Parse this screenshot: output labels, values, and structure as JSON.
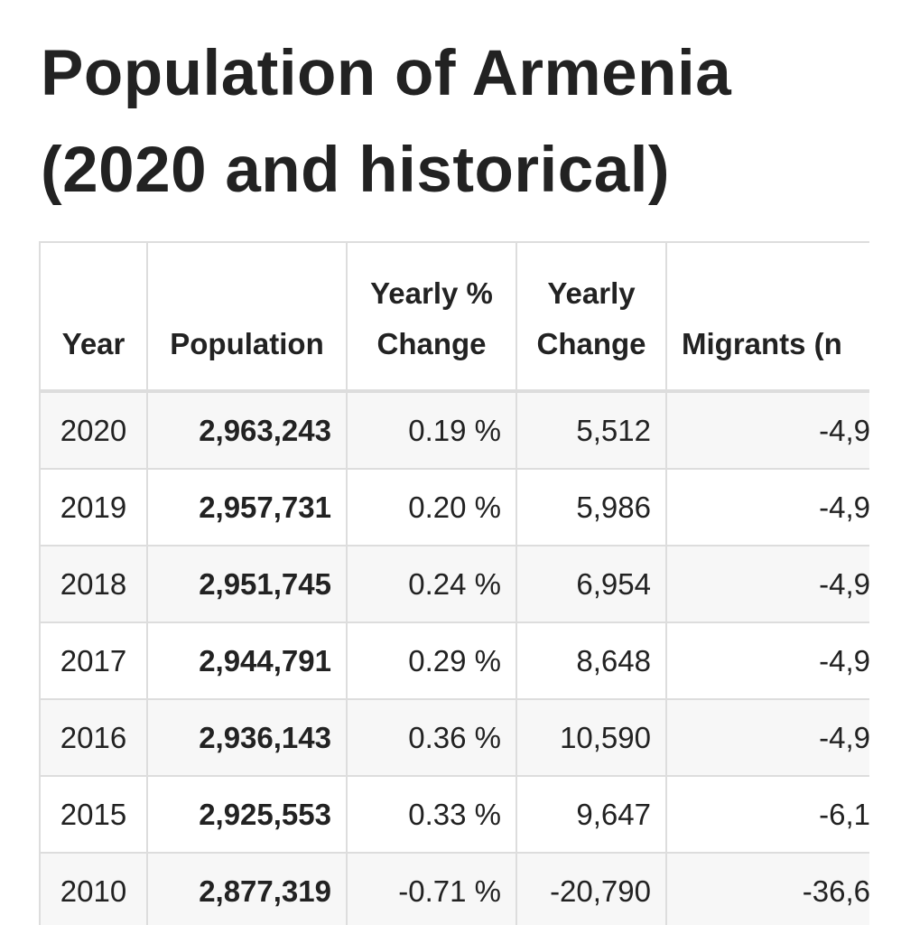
{
  "header": {
    "title": "Population of Armenia (2020 and historical)"
  },
  "table": {
    "columns": [
      "Year",
      "Population",
      "Yearly % Change",
      "Yearly Change",
      "Migrants (n"
    ],
    "rows": [
      [
        "2020",
        "2,963,243",
        "0.19 %",
        "5,512",
        "-4,9"
      ],
      [
        "2019",
        "2,957,731",
        "0.20 %",
        "5,986",
        "-4,9"
      ],
      [
        "2018",
        "2,951,745",
        "0.24 %",
        "6,954",
        "-4,9"
      ],
      [
        "2017",
        "2,944,791",
        "0.29 %",
        "8,648",
        "-4,9"
      ],
      [
        "2016",
        "2,936,143",
        "0.36 %",
        "10,590",
        "-4,9"
      ],
      [
        "2015",
        "2,925,553",
        "0.33 %",
        "9,647",
        "-6,1"
      ],
      [
        "2010",
        "2,877,319",
        "-0.71 %",
        "-20,790",
        "-36,6"
      ]
    ]
  }
}
